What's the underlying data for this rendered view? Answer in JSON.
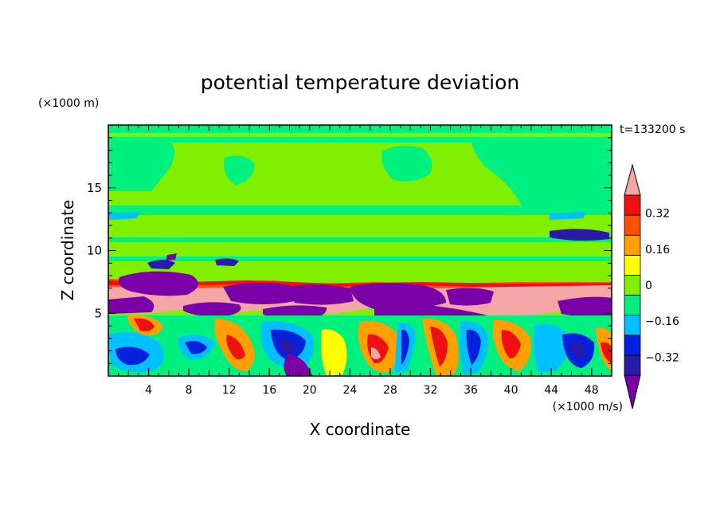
{
  "chart_data": {
    "type": "heatmap",
    "title": "potential temperature deviation",
    "xlabel": "X coordinate",
    "ylabel": "Z coordinate",
    "x_unit": "(×1000 m/s)",
    "y_unit": "(×1000 m)",
    "time_label": "t=133200 s",
    "xlim": [
      0,
      50
    ],
    "ylim": [
      0,
      20
    ],
    "x_ticks": [
      4,
      8,
      12,
      16,
      20,
      24,
      28,
      32,
      36,
      40,
      44,
      48
    ],
    "y_ticks": [
      5,
      10,
      15
    ],
    "colorbar": {
      "levels": [
        -0.4,
        -0.32,
        -0.24,
        -0.16,
        -0.08,
        0,
        0.08,
        0.16,
        0.24,
        0.32,
        0.4
      ],
      "tick_values": [
        -0.32,
        -0.16,
        0,
        0.16,
        0.32
      ],
      "tick_labels": [
        "−0.32",
        "−0.16",
        "0",
        "0.16",
        "0.32"
      ],
      "colors": [
        "#7a00a8",
        "#2a1aa8",
        "#0022dd",
        "#00c0ff",
        "#00f080",
        "#80f000",
        "#ffff00",
        "#ffa000",
        "#ff5000",
        "#ee1111",
        "#f4a6a6"
      ],
      "extend": "both"
    }
  }
}
